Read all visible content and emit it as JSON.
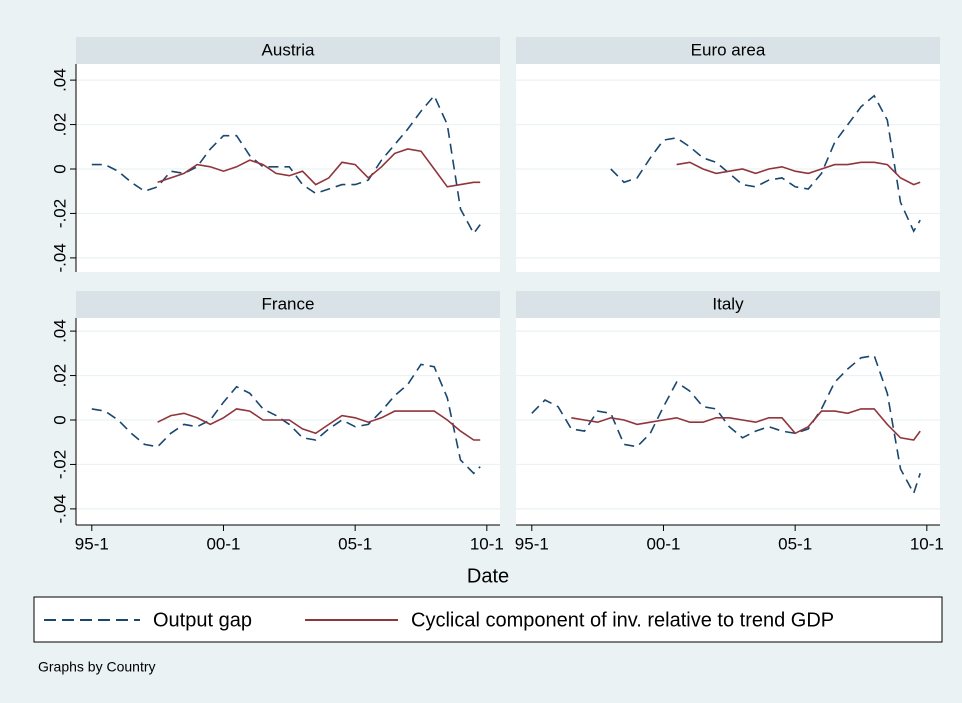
{
  "x_label": "Date",
  "note": "Graphs by Country",
  "chart_data": [
    {
      "type": "line",
      "title": "Austria",
      "x": [
        1995,
        1995.5,
        1996,
        1996.5,
        1997,
        1997.5,
        1998,
        1998.5,
        1999,
        1999.5,
        2000,
        2000.5,
        2001,
        2001.5,
        2002,
        2002.5,
        2003,
        2003.5,
        2004,
        2004.5,
        2005,
        2005.5,
        2006,
        2006.5,
        2007,
        2007.5,
        2008,
        2008.5,
        2009,
        2009.5,
        2009.75
      ],
      "xlim": [
        1994.4,
        2010.5
      ],
      "ylim": [
        -0.045,
        0.045
      ],
      "yticks": [
        {
          "value": -0.04,
          "label": "-.04"
        },
        {
          "value": -0.02,
          "label": "-.02"
        },
        0,
        {
          "value": 0.02,
          "label": ".02"
        },
        {
          "value": 0.04,
          "label": ".04"
        }
      ],
      "grid": true,
      "series": [
        {
          "name": "Output gap",
          "color": "#1a476f",
          "dash": true,
          "values": [
            0.002,
            0.002,
            -0.001,
            -0.006,
            -0.01,
            -0.008,
            -0.001,
            -0.002,
            0.001,
            0.009,
            0.015,
            0.015,
            0.006,
            0.001,
            0.001,
            0.001,
            -0.007,
            -0.011,
            -0.009,
            -0.007,
            -0.007,
            -0.005,
            0.004,
            0.011,
            0.018,
            0.026,
            0.033,
            0.02,
            -0.018,
            -0.029,
            -0.025
          ]
        },
        {
          "name": "Cyclical component of inv. relative to trend GDP",
          "color": "#90353b",
          "dash": false,
          "values": [
            null,
            null,
            null,
            null,
            null,
            -0.006,
            -0.004,
            -0.002,
            0.002,
            0.001,
            -0.001,
            0.001,
            0.004,
            0.002,
            -0.002,
            -0.003,
            -0.001,
            -0.007,
            -0.004,
            0.003,
            0.002,
            -0.004,
            0.001,
            0.007,
            0.009,
            0.008,
            0,
            -0.008,
            -0.007,
            -0.006,
            -0.006
          ]
        }
      ]
    },
    {
      "type": "line",
      "title": "Euro area",
      "x": [
        1995,
        1995.5,
        1996,
        1996.5,
        1997,
        1997.5,
        1998,
        1998.5,
        1999,
        1999.5,
        2000,
        2000.5,
        2001,
        2001.5,
        2002,
        2002.5,
        2003,
        2003.5,
        2004,
        2004.5,
        2005,
        2005.5,
        2006,
        2006.5,
        2007,
        2007.5,
        2008,
        2008.5,
        2009,
        2009.5,
        2009.75
      ],
      "xlim": [
        1994.4,
        2010.5
      ],
      "ylim": [
        -0.045,
        0.045
      ],
      "yticks": [
        -0.04,
        -0.02,
        0,
        0.02,
        0.04
      ],
      "grid": true,
      "series": [
        {
          "name": "Output gap",
          "color": "#1a476f",
          "dash": true,
          "values": [
            null,
            null,
            null,
            null,
            null,
            null,
            0,
            -0.006,
            -0.004,
            0.005,
            0.013,
            0.014,
            0.01,
            0.005,
            0.003,
            -0.002,
            -0.007,
            -0.008,
            -0.005,
            -0.004,
            -0.008,
            -0.009,
            -0.002,
            0.012,
            0.02,
            0.028,
            0.033,
            0.022,
            -0.015,
            -0.028,
            -0.023
          ]
        },
        {
          "name": "Cyclical component of inv. relative to trend GDP",
          "color": "#90353b",
          "dash": false,
          "values": [
            null,
            null,
            null,
            null,
            null,
            null,
            null,
            null,
            null,
            null,
            null,
            0.002,
            0.003,
            0,
            -0.002,
            -0.001,
            0,
            -0.002,
            0,
            0.001,
            -0.001,
            -0.002,
            0,
            0.002,
            0.002,
            0.003,
            0.003,
            0.002,
            -0.004,
            -0.007,
            -0.006
          ]
        }
      ]
    },
    {
      "type": "line",
      "title": "France",
      "x": [
        1995,
        1995.5,
        1996,
        1996.5,
        1997,
        1997.5,
        1998,
        1998.5,
        1999,
        1999.5,
        2000,
        2000.5,
        2001,
        2001.5,
        2002,
        2002.5,
        2003,
        2003.5,
        2004,
        2004.5,
        2005,
        2005.5,
        2006,
        2006.5,
        2007,
        2007.5,
        2008,
        2008.5,
        2009,
        2009.5,
        2009.75
      ],
      "xlim": [
        1994.4,
        2010.5
      ],
      "xticks": [
        {
          "value": 1995,
          "label": "95-1"
        },
        {
          "value": 2000,
          "label": "00-1"
        },
        {
          "value": 2005,
          "label": "05-1"
        },
        {
          "value": 2010,
          "label": "10-1"
        }
      ],
      "ylim": [
        -0.045,
        0.045
      ],
      "yticks": [
        {
          "value": -0.04,
          "label": "-.04"
        },
        {
          "value": -0.02,
          "label": "-.02"
        },
        0,
        {
          "value": 0.02,
          "label": ".02"
        },
        {
          "value": 0.04,
          "label": ".04"
        }
      ],
      "grid": true,
      "series": [
        {
          "name": "Output gap",
          "color": "#1a476f",
          "dash": true,
          "values": [
            0.005,
            0.004,
            0,
            -0.006,
            -0.011,
            -0.012,
            -0.006,
            -0.002,
            -0.003,
            0,
            0.008,
            0.015,
            0.012,
            0.005,
            0.002,
            -0.002,
            -0.008,
            -0.009,
            -0.004,
            0,
            -0.003,
            -0.002,
            0.004,
            0.011,
            0.016,
            0.025,
            0.024,
            0.01,
            -0.018,
            -0.024,
            -0.021
          ]
        },
        {
          "name": "Cyclical component of inv. relative to trend GDP",
          "color": "#90353b",
          "dash": false,
          "values": [
            null,
            null,
            null,
            null,
            null,
            -0.001,
            0.002,
            0.003,
            0.001,
            -0.002,
            0.001,
            0.005,
            0.004,
            0,
            0,
            0,
            -0.004,
            -0.006,
            -0.002,
            0.002,
            0.001,
            -0.001,
            0.001,
            0.004,
            0.004,
            0.004,
            0.004,
            0,
            -0.005,
            -0.009,
            -0.009
          ]
        }
      ]
    },
    {
      "type": "line",
      "title": "Italy",
      "x": [
        1995,
        1995.5,
        1996,
        1996.5,
        1997,
        1997.5,
        1998,
        1998.5,
        1999,
        1999.5,
        2000,
        2000.5,
        2001,
        2001.5,
        2002,
        2002.5,
        2003,
        2003.5,
        2004,
        2004.5,
        2005,
        2005.5,
        2006,
        2006.5,
        2007,
        2007.5,
        2008,
        2008.5,
        2009,
        2009.5,
        2009.75
      ],
      "xlim": [
        1994.4,
        2010.5
      ],
      "xticks": [
        {
          "value": 1995,
          "label": "95-1"
        },
        {
          "value": 2000,
          "label": "00-1"
        },
        {
          "value": 2005,
          "label": "05-1"
        },
        {
          "value": 2010,
          "label": "10-1"
        }
      ],
      "ylim": [
        -0.045,
        0.045
      ],
      "yticks": [
        -0.04,
        -0.02,
        0,
        0.02,
        0.04
      ],
      "grid": true,
      "series": [
        {
          "name": "Output gap",
          "color": "#1a476f",
          "dash": true,
          "values": [
            0.003,
            0.009,
            0.006,
            -0.004,
            -0.005,
            0.004,
            0.003,
            -0.011,
            -0.012,
            -0.006,
            0.006,
            0.017,
            0.013,
            0.006,
            0.005,
            -0.003,
            -0.008,
            -0.005,
            -0.003,
            -0.005,
            -0.006,
            -0.004,
            0.005,
            0.017,
            0.023,
            0.028,
            0.029,
            0.012,
            -0.022,
            -0.033,
            -0.024
          ]
        },
        {
          "name": "Cyclical component of inv. relative to trend GDP",
          "color": "#90353b",
          "dash": false,
          "values": [
            null,
            null,
            null,
            0.001,
            0,
            -0.001,
            0.001,
            0,
            -0.002,
            -0.001,
            0,
            0.001,
            -0.001,
            -0.001,
            0.001,
            0.001,
            0,
            -0.001,
            0.001,
            0.001,
            -0.006,
            -0.003,
            0.004,
            0.004,
            0.003,
            0.005,
            0.005,
            -0.002,
            -0.008,
            -0.009,
            -0.005
          ]
        }
      ]
    }
  ]
}
